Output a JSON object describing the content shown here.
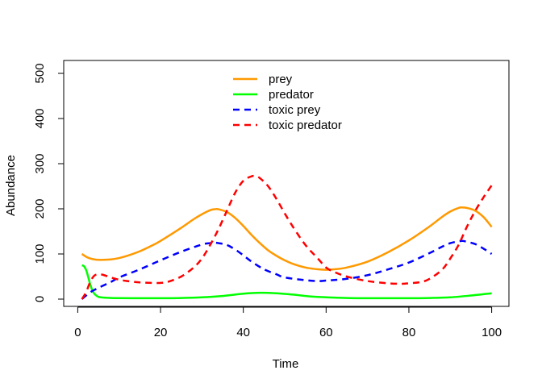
{
  "chart_data": {
    "type": "line",
    "title": "",
    "xlabel": "Time",
    "ylabel": "Abundance",
    "xlim": [
      0,
      100
    ],
    "ylim": [
      0,
      500
    ],
    "x_ticks": [
      "0",
      "20",
      "40",
      "60",
      "80",
      "100"
    ],
    "y_ticks": [
      "0",
      "100",
      "200",
      "300",
      "400",
      "500"
    ],
    "grid": false,
    "legend_position": "top-center",
    "series": [
      {
        "name": "prey",
        "color": "#FF9900",
        "dash": "solid",
        "x": [
          1,
          2,
          3,
          4,
          5,
          6,
          8,
          10,
          12,
          15,
          18,
          20,
          25,
          28,
          30,
          32,
          33,
          34,
          36,
          38,
          40,
          42,
          44,
          46,
          48,
          50,
          52,
          55,
          58,
          60,
          62,
          65,
          70,
          75,
          80,
          85,
          88,
          90,
          92,
          93,
          94,
          96,
          98,
          100
        ],
        "y": [
          100,
          94,
          90,
          88,
          87,
          87,
          88,
          91,
          96,
          106,
          119,
          129,
          158,
          177,
          188,
          197,
          199,
          199,
          193,
          180,
          162,
          142,
          124,
          108,
          96,
          86,
          78,
          70,
          66,
          65,
          66,
          70,
          83,
          104,
          130,
          161,
          182,
          194,
          202,
          203,
          202,
          196,
          182,
          160
        ]
      },
      {
        "name": "predator",
        "color": "#00FF00",
        "dash": "solid",
        "x": [
          1,
          1.5,
          2,
          2.5,
          3,
          3.5,
          4,
          4.5,
          5,
          6,
          7,
          8,
          10,
          15,
          20,
          25,
          30,
          35,
          40,
          44,
          48,
          52,
          56,
          60,
          65,
          70,
          75,
          80,
          85,
          90,
          95,
          100
        ],
        "y": [
          75,
          73,
          65,
          50,
          33,
          20,
          12,
          8,
          5,
          3.5,
          3,
          2.5,
          2.2,
          2,
          2,
          2.5,
          4,
          7,
          12,
          14,
          13,
          10,
          6,
          4,
          2.5,
          2,
          2,
          2,
          2.5,
          4,
          8,
          13
        ]
      },
      {
        "name": "toxic prey",
        "color": "#0000FF",
        "dash": "dashed",
        "x": [
          1,
          3,
          5,
          8,
          10,
          15,
          20,
          25,
          30,
          32,
          33,
          34,
          36,
          38,
          40,
          42,
          45,
          48,
          50,
          55,
          58,
          60,
          65,
          70,
          75,
          80,
          85,
          88,
          90,
          92,
          93,
          94,
          96,
          98,
          100
        ],
        "y": [
          0,
          15,
          25,
          38,
          48,
          66,
          86,
          105,
          121,
          124,
          125,
          124,
          120,
          110,
          97,
          83,
          66,
          55,
          48,
          42,
          40,
          41,
          45,
          53,
          66,
          81,
          102,
          116,
          124,
          128,
          129,
          127,
          122,
          112,
          100
        ]
      },
      {
        "name": "toxic predator",
        "color": "#FF0000",
        "dash": "dashed",
        "x": [
          1,
          2,
          3,
          4,
          5,
          6,
          8,
          10,
          12,
          15,
          18,
          20,
          22,
          25,
          28,
          30,
          32,
          34,
          36,
          38,
          40,
          42,
          43,
          44,
          46,
          48,
          50,
          52,
          55,
          58,
          60,
          62,
          65,
          70,
          75,
          78,
          80,
          83,
          85,
          88,
          90,
          92,
          94,
          96,
          98,
          100
        ],
        "y": [
          0,
          15,
          38,
          52,
          55,
          54,
          48,
          43,
          40,
          37,
          36,
          36,
          39,
          50,
          70,
          90,
          120,
          155,
          195,
          235,
          262,
          272,
          272,
          268,
          250,
          222,
          190,
          160,
          120,
          90,
          70,
          60,
          50,
          40,
          35,
          34,
          35,
          38,
          45,
          65,
          90,
          120,
          160,
          195,
          225,
          252
        ]
      }
    ]
  }
}
